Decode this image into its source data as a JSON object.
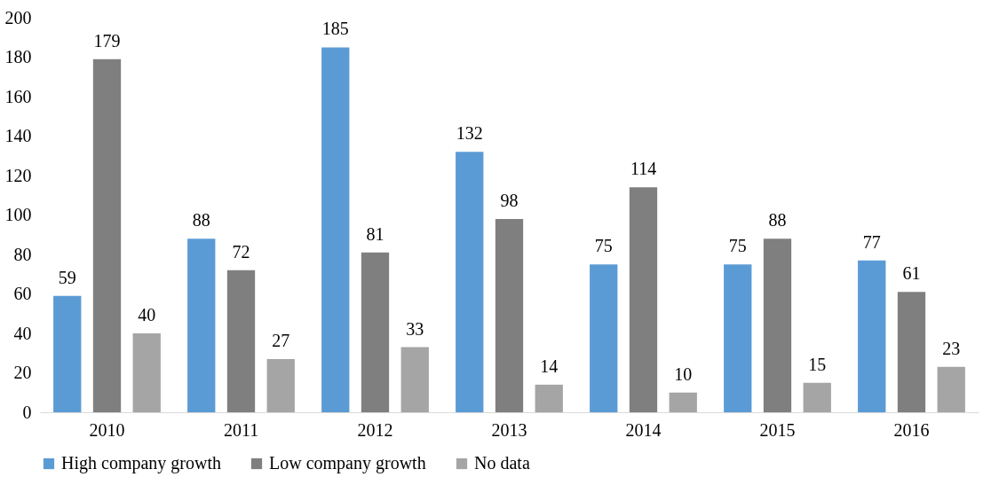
{
  "chart_data": {
    "type": "bar",
    "categories": [
      "2010",
      "2011",
      "2012",
      "2013",
      "2014",
      "2015",
      "2016"
    ],
    "series": [
      {
        "name": "High company growth",
        "color": "#5b9bd5",
        "values": [
          59,
          88,
          185,
          132,
          75,
          75,
          77
        ]
      },
      {
        "name": "Low company growth",
        "color": "#7f7f7f",
        "values": [
          179,
          72,
          81,
          98,
          114,
          88,
          61
        ]
      },
      {
        "name": "No data",
        "color": "#a5a5a5",
        "values": [
          40,
          27,
          33,
          14,
          10,
          15,
          23
        ]
      }
    ],
    "ylim": [
      0,
      200
    ],
    "yticks": [
      0,
      20,
      40,
      60,
      80,
      100,
      120,
      140,
      160,
      180,
      200
    ],
    "grid": false,
    "legend": "bottom",
    "data_labels": true
  }
}
